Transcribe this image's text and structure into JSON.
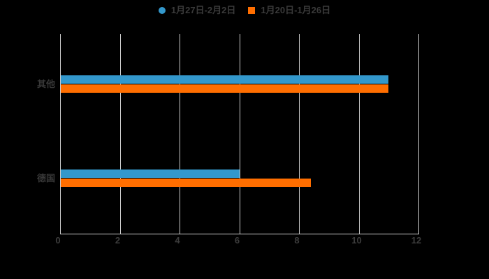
{
  "chart_data": {
    "type": "bar",
    "orientation": "horizontal",
    "title": "",
    "categories": [
      "其他",
      "德国"
    ],
    "series": [
      {
        "name": "1月27日-2月2日",
        "color": "#3398cc",
        "marker": "circle",
        "values": [
          11,
          6
        ]
      },
      {
        "name": "1月20日-1月26日",
        "color": "#ff6e00",
        "marker": "square",
        "values": [
          11,
          8.4
        ]
      }
    ],
    "xlim": [
      0,
      12
    ],
    "xticks": [
      "0",
      "2",
      "4",
      "6",
      "8",
      "10",
      "12"
    ],
    "grid": "vertical",
    "legend_position": "top-center",
    "colors": {
      "background": "#000000",
      "gridline": "#cccccc",
      "axis_line": "#cccccc",
      "tick_label": "#3c3c3c",
      "category_label": "#383838",
      "legend_text": "#3a3a3a"
    }
  }
}
